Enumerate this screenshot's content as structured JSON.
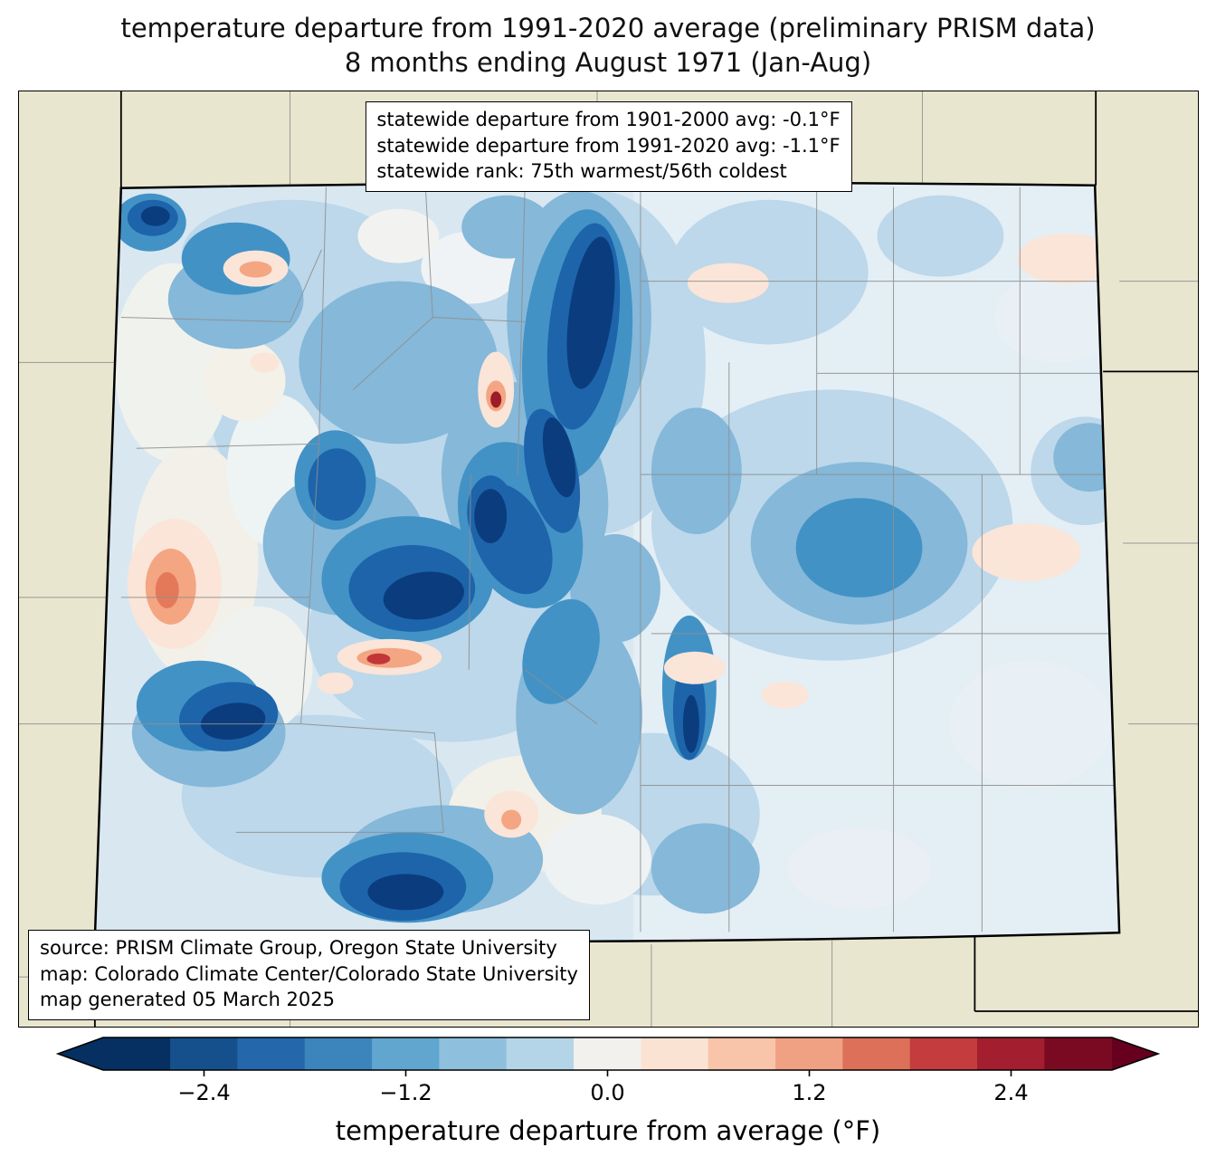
{
  "title": {
    "line1": "temperature departure from 1991-2020 average (preliminary PRISM data)",
    "line2": "8 months ending August 1971 (Jan-Aug)"
  },
  "stats_box": {
    "line1": "statewide departure from 1901-2000 avg: -0.1°F",
    "line2": "statewide departure from 1991-2020 avg: -1.1°F",
    "line3": "statewide rank: 75th warmest/56th coldest"
  },
  "source_box": {
    "line1": "source: PRISM Climate Group, Oregon State University",
    "line2": "map: Colorado Climate Center/Colorado State University",
    "line3": "map generated 05 March 2025"
  },
  "colorbar": {
    "label": "temperature departure from average (°F)",
    "ticks": [
      "−2.4",
      "−1.2",
      "0.0",
      "1.2",
      "2.4"
    ],
    "tick_values": [
      -2.4,
      -1.2,
      0.0,
      1.2,
      2.4
    ],
    "range": [
      -3.0,
      3.0
    ],
    "colors": [
      "#053061",
      "#15508d",
      "#2467ab",
      "#3c84bc",
      "#60a6cf",
      "#8ec0dd",
      "#b4d5e7",
      "#f2f1ee",
      "#fbe3d4",
      "#f9c5aa",
      "#f0a183",
      "#dc7059",
      "#c43c3e",
      "#a31e2e",
      "#7a0a22"
    ],
    "under_color": "#053061",
    "over_color": "#67001f"
  },
  "map": {
    "region": "Colorado",
    "projection_note": "state map with county boundaries",
    "background_color": "#e9e6d0",
    "state_border_color": "#000000",
    "county_line_color": "#8f8f8f"
  }
}
